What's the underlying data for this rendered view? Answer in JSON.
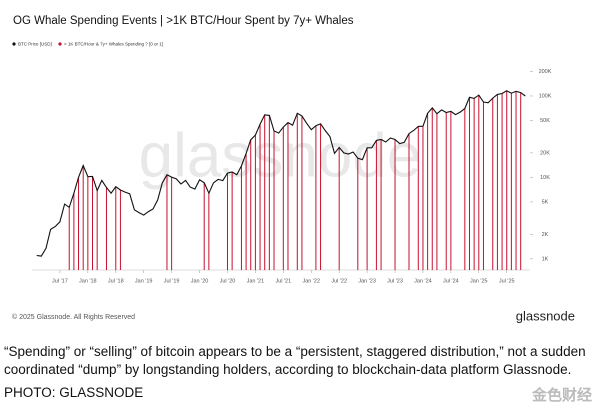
{
  "chart_data": {
    "type": "line",
    "title": "OG Whale Spending Events | >1K BTC/Hour Spent by 7y+ Whales",
    "watermark": "glassnode",
    "copyright": "© 2025 Glassnode. All Rights Reserved",
    "brand": "glassnode",
    "log_scale": true,
    "legend": "top-left",
    "ylim": [
      730,
      240000
    ],
    "yticks": [
      {
        "value": 1000,
        "label": "1K"
      },
      {
        "value": 2000,
        "label": "2K"
      },
      {
        "value": 5000,
        "label": "5K"
      },
      {
        "value": 10000,
        "label": "10K"
      },
      {
        "value": 20000,
        "label": "20K"
      },
      {
        "value": 50000,
        "label": "50K"
      },
      {
        "value": 100000,
        "label": "100K"
      },
      {
        "value": 200000,
        "label": "200K"
      }
    ],
    "xlim": [
      "2017-01",
      "2025-12"
    ],
    "xticks": [
      {
        "value": "2017-07",
        "label": "Jul '17"
      },
      {
        "value": "2018-01",
        "label": "Jan '18"
      },
      {
        "value": "2018-07",
        "label": "Jul '18"
      },
      {
        "value": "2019-01",
        "label": "Jan '19"
      },
      {
        "value": "2019-07",
        "label": "Jul '19"
      },
      {
        "value": "2020-01",
        "label": "Jan '20"
      },
      {
        "value": "2020-07",
        "label": "Jul '20"
      },
      {
        "value": "2021-01",
        "label": "Jan '21"
      },
      {
        "value": "2021-07",
        "label": "Jul '21"
      },
      {
        "value": "2022-01",
        "label": "Jan '22"
      },
      {
        "value": "2022-07",
        "label": "Jul '22"
      },
      {
        "value": "2023-01",
        "label": "Jan '23"
      },
      {
        "value": "2023-07",
        "label": "Jul '23"
      },
      {
        "value": "2024-01",
        "label": "Jan '24"
      },
      {
        "value": "2024-07",
        "label": "Jul '24"
      },
      {
        "value": "2025-01",
        "label": "Jan '25"
      },
      {
        "value": "2025-07",
        "label": "Jul '25"
      }
    ],
    "x": [
      "2017-02",
      "2017-03",
      "2017-04",
      "2017-05",
      "2017-06",
      "2017-07",
      "2017-08",
      "2017-09",
      "2017-10",
      "2017-11",
      "2017-12",
      "2018-01",
      "2018-02",
      "2018-03",
      "2018-04",
      "2018-05",
      "2018-06",
      "2018-07",
      "2018-08",
      "2018-09",
      "2018-10",
      "2018-11",
      "2018-12",
      "2019-01",
      "2019-02",
      "2019-03",
      "2019-04",
      "2019-05",
      "2019-06",
      "2019-07",
      "2019-08",
      "2019-09",
      "2019-10",
      "2019-11",
      "2019-12",
      "2020-01",
      "2020-02",
      "2020-03",
      "2020-04",
      "2020-05",
      "2020-06",
      "2020-07",
      "2020-08",
      "2020-09",
      "2020-10",
      "2020-11",
      "2020-12",
      "2021-01",
      "2021-02",
      "2021-03",
      "2021-04",
      "2021-05",
      "2021-06",
      "2021-07",
      "2021-08",
      "2021-09",
      "2021-10",
      "2021-11",
      "2021-12",
      "2022-01",
      "2022-02",
      "2022-03",
      "2022-04",
      "2022-05",
      "2022-06",
      "2022-07",
      "2022-08",
      "2022-09",
      "2022-10",
      "2022-11",
      "2022-12",
      "2023-01",
      "2023-02",
      "2023-03",
      "2023-04",
      "2023-05",
      "2023-06",
      "2023-07",
      "2023-08",
      "2023-09",
      "2023-10",
      "2023-11",
      "2023-12",
      "2024-01",
      "2024-02",
      "2024-03",
      "2024-04",
      "2024-05",
      "2024-06",
      "2024-07",
      "2024-08",
      "2024-09",
      "2024-10",
      "2024-11",
      "2024-12",
      "2025-01",
      "2025-02",
      "2025-03",
      "2025-04",
      "2025-05",
      "2025-06",
      "2025-07",
      "2025-08",
      "2025-09",
      "2025-10",
      "2025-11"
    ],
    "series": [
      {
        "name": "BTC Price [USD]",
        "color": "#111111",
        "values": [
          1100,
          1080,
          1350,
          2300,
          2500,
          2850,
          4700,
          4300,
          6400,
          10000,
          14000,
          10200,
          10300,
          6900,
          9200,
          7500,
          6400,
          7700,
          7000,
          6600,
          6300,
          4000,
          3700,
          3450,
          3800,
          4100,
          5300,
          8600,
          10800,
          10100,
          9600,
          8300,
          9200,
          7600,
          7200,
          9350,
          8600,
          6400,
          8600,
          9450,
          9150,
          11300,
          11650,
          10800,
          13800,
          19700,
          29000,
          33100,
          45200,
          58800,
          57700,
          37300,
          35000,
          41500,
          47100,
          43800,
          61300,
          57000,
          46300,
          38500,
          43200,
          45500,
          37700,
          31800,
          19800,
          23300,
          20000,
          19400,
          20500,
          17200,
          16500,
          23100,
          23100,
          28500,
          29300,
          27200,
          30500,
          29200,
          26000,
          27000,
          34500,
          37700,
          42300,
          42600,
          61200,
          71300,
          60600,
          67500,
          62700,
          64600,
          59000,
          63300,
          70200,
          96400,
          93400,
          102400,
          84400,
          82500,
          94200,
          104600,
          107100,
          115700,
          108200,
          114000,
          110000,
          100000
        ]
      },
      {
        "name": "> 1K BTC/Hour & 7y+ Whales Spending ? [0 or 1]",
        "color": "#c8102e",
        "x": [
          "2017-09",
          "2017-10",
          "2017-11",
          "2017-12",
          "2018-01",
          "2018-02",
          "2018-03",
          "2018-05",
          "2018-07",
          "2018-08",
          "2019-06",
          "2019-07",
          "2020-02",
          "2020-03",
          "2020-07",
          "2020-08",
          "2020-10",
          "2020-11",
          "2020-12",
          "2021-01",
          "2021-02",
          "2021-03",
          "2021-04",
          "2021-05",
          "2021-07",
          "2021-08",
          "2021-10",
          "2021-11",
          "2022-02",
          "2022-03",
          "2022-07",
          "2022-11",
          "2023-01",
          "2023-03",
          "2023-04",
          "2023-07",
          "2023-10",
          "2023-12",
          "2024-01",
          "2024-02",
          "2024-03",
          "2024-04",
          "2024-06",
          "2024-07",
          "2024-10",
          "2024-11",
          "2024-12",
          "2025-01",
          "2025-02",
          "2025-04",
          "2025-05",
          "2025-06",
          "2025-07",
          "2025-08",
          "2025-09",
          "2025-10"
        ],
        "values": [
          1,
          1,
          1,
          1,
          1,
          1,
          1,
          1,
          1,
          1,
          1,
          1,
          1,
          1,
          1,
          1,
          1,
          1,
          1,
          1,
          1,
          1,
          1,
          1,
          1,
          1,
          1,
          1,
          1,
          1,
          1,
          1,
          1,
          1,
          1,
          1,
          1,
          1,
          1,
          1,
          1,
          1,
          1,
          1,
          1,
          1,
          1,
          1,
          1,
          1,
          1,
          1,
          1,
          1,
          1,
          1
        ]
      }
    ]
  },
  "caption": "“Spending” or “selling” of bitcoin appears to be a “persistent, staggered distribution,” not a sudden coordinated “dump” by longstanding holders, according to blockchain-data platform Glassnode.",
  "credit": "PHOTO: GLASSNODE",
  "corner_mark": "金色财经"
}
